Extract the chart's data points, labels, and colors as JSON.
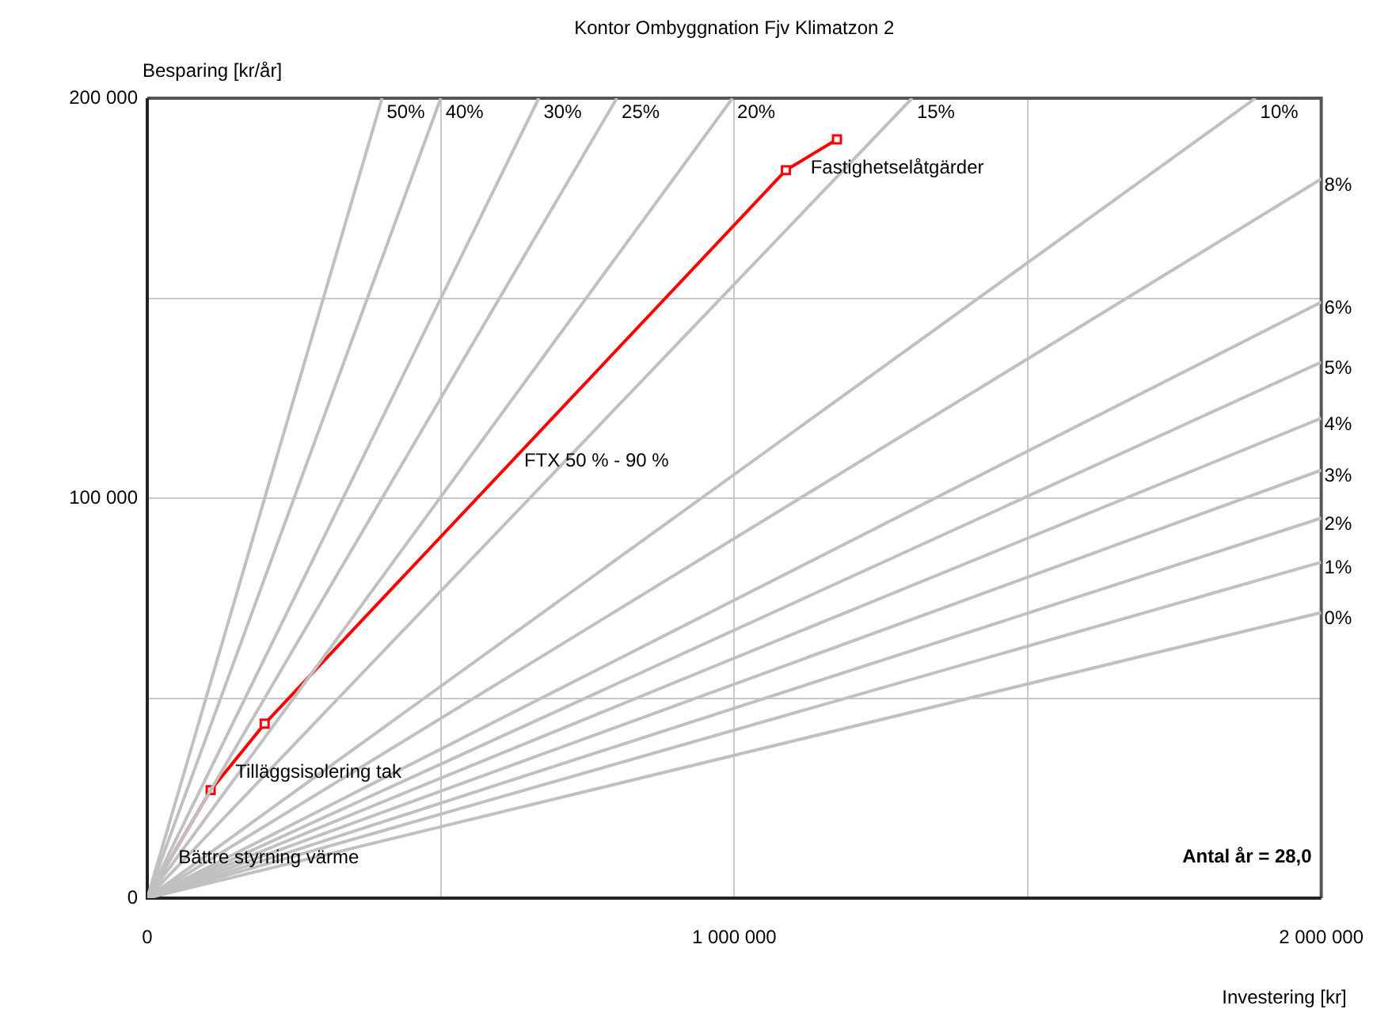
{
  "chart_data": {
    "type": "line",
    "title": "Kontor Ombyggnation Fjv Klimatzon 2",
    "xlabel": "Investering [kr]",
    "ylabel": "Besparing [kr/år]",
    "xlim": [
      0,
      2000000
    ],
    "xticks": [
      {
        "value": 0,
        "label": "0"
      },
      {
        "value": 500000,
        "label": null
      },
      {
        "value": 1000000,
        "label": "1 000 000"
      },
      {
        "value": 1500000,
        "label": null
      },
      {
        "value": 2000000,
        "label": "2 000 000"
      }
    ],
    "ylim": [
      0,
      200000
    ],
    "yticks": [
      {
        "value": 0,
        "label": "0"
      },
      {
        "value": 50000,
        "label": null
      },
      {
        "value": 100000,
        "label": "100 000"
      },
      {
        "value": 150000,
        "label": null
      },
      {
        "value": 200000,
        "label": "200 000"
      }
    ],
    "grid": true,
    "legend": false,
    "series": [
      {
        "name": "50%",
        "color": "#c0c0c0",
        "marker": "none",
        "x": [
          0,
          400000
        ],
        "values": [
          0,
          200000
        ]
      },
      {
        "name": "40%",
        "color": "#c0c0c0",
        "marker": "none",
        "x": [
          0,
          500000
        ],
        "values": [
          0,
          200000
        ]
      },
      {
        "name": "30%",
        "color": "#c0c0c0",
        "marker": "none",
        "x": [
          0,
          667000
        ],
        "values": [
          0,
          200000
        ]
      },
      {
        "name": "25%",
        "color": "#c0c0c0",
        "marker": "none",
        "x": [
          0,
          800000
        ],
        "values": [
          0,
          200000
        ]
      },
      {
        "name": "20%",
        "color": "#c0c0c0",
        "marker": "none",
        "x": [
          0,
          997000
        ],
        "values": [
          0,
          200000
        ]
      },
      {
        "name": "15%",
        "color": "#c0c0c0",
        "marker": "none",
        "x": [
          0,
          1303000
        ],
        "values": [
          0,
          200000
        ]
      },
      {
        "name": "10%",
        "color": "#c0c0c0",
        "marker": "none",
        "x": [
          0,
          1888000
        ],
        "values": [
          0,
          200000
        ]
      },
      {
        "name": "8%",
        "color": "#c0c0c0",
        "marker": "none",
        "x": [
          0,
          2000000
        ],
        "values": [
          0,
          179800
        ]
      },
      {
        "name": "6%",
        "color": "#c0c0c0",
        "marker": "none",
        "x": [
          0,
          2000000
        ],
        "values": [
          0,
          149000
        ]
      },
      {
        "name": "5%",
        "color": "#c0c0c0",
        "marker": "none",
        "x": [
          0,
          2000000
        ],
        "values": [
          0,
          134000
        ]
      },
      {
        "name": "4%",
        "color": "#c0c0c0",
        "marker": "none",
        "x": [
          0,
          2000000
        ],
        "values": [
          0,
          120000
        ]
      },
      {
        "name": "3%",
        "color": "#c0c0c0",
        "marker": "none",
        "x": [
          0,
          2000000
        ],
        "values": [
          0,
          107000
        ]
      },
      {
        "name": "2%",
        "color": "#c0c0c0",
        "marker": "none",
        "x": [
          0,
          2000000
        ],
        "values": [
          0,
          95000
        ]
      },
      {
        "name": "1%",
        "color": "#c0c0c0",
        "marker": "none",
        "x": [
          0,
          2000000
        ],
        "values": [
          0,
          84000
        ]
      },
      {
        "name": "0%",
        "color": "#c0c0c0",
        "marker": "none",
        "x": [
          0,
          2000000
        ],
        "values": [
          0,
          71400
        ]
      },
      {
        "color": "#ff0000",
        "marker": "square",
        "x": [
          0,
          108000,
          200000,
          1088000,
          1175000
        ],
        "values": [
          0,
          27000,
          43600,
          182000,
          189700
        ]
      }
    ],
    "annotations": [
      {
        "text": "Bättre styrning värme",
        "x": 53000,
        "y": 13250
      },
      {
        "text": "Tilläggsisolering tak",
        "x": 150000,
        "y": 34600
      },
      {
        "text": "FTX 50 % - 90 %",
        "x": 642000,
        "y": 112500
      },
      {
        "text": "Fastighetselåtgärder",
        "x": 1130000,
        "y": 185700
      },
      "Antal år = 28,0"
    ]
  }
}
